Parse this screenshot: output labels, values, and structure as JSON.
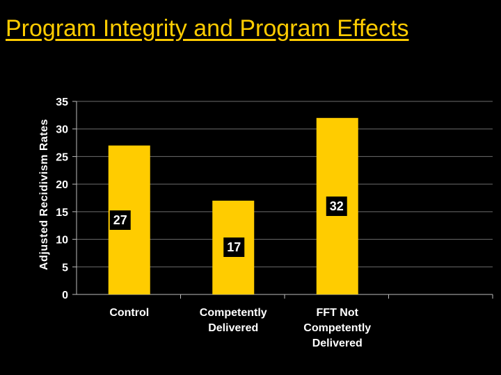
{
  "chart_data": {
    "type": "bar",
    "title": "Program Integrity and Program Effects",
    "categories": [
      [
        "Control"
      ],
      [
        "Competently",
        "Delivered"
      ],
      [
        "FFT Not",
        "Competently",
        "Delivered"
      ]
    ],
    "values": [
      27,
      17,
      32
    ],
    "data_labels": [
      "27",
      "17",
      "32"
    ],
    "xlabel": "",
    "ylabel": "Adjusted Recidivism Rates",
    "ylim": [
      0,
      35
    ],
    "yticks": [
      0,
      5,
      10,
      15,
      20,
      25,
      30,
      35
    ],
    "grid": true,
    "colors": {
      "bar": "#FFCC00",
      "background": "#000000",
      "text": "#FFFFFF",
      "title": "#FFCC00",
      "label_box": "#000000"
    }
  }
}
